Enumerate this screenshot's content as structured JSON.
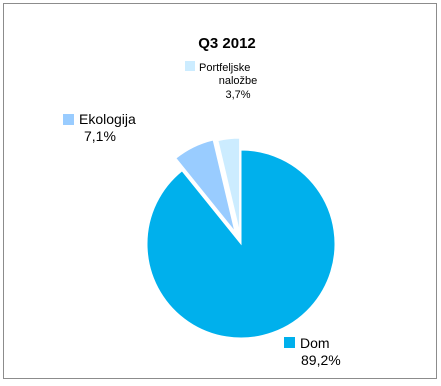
{
  "chart_data": {
    "type": "pie",
    "title": "Q3 2012",
    "slices": [
      {
        "name": "Dom",
        "value": 89.2,
        "label": "89,2%",
        "color": "#00b0ec"
      },
      {
        "name": "Ekologija",
        "value": 7.1,
        "label": "7,1%",
        "color": "#99ccff"
      },
      {
        "name": "Portfeljske naložbe",
        "name_lines": [
          "Portfeljske",
          "naložbe"
        ],
        "value": 3.7,
        "label": "3,7%",
        "color": "#ccecff"
      }
    ],
    "legend": "labels next to slices"
  }
}
